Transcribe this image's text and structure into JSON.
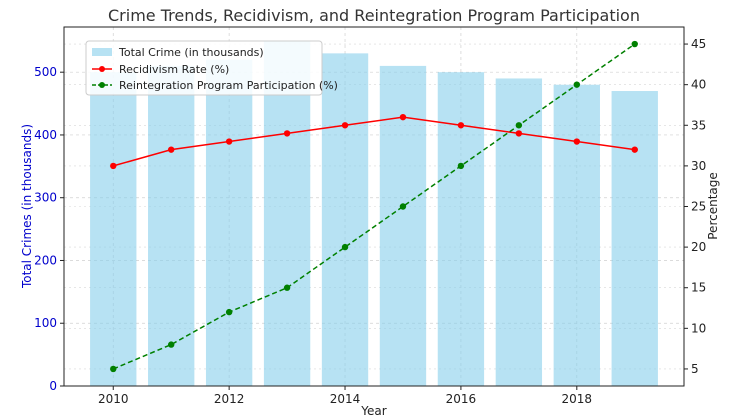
{
  "chart_data": {
    "type": "bar+line",
    "title": "Crime Trends, Recidivism, and Reintegration Program Participation",
    "xlabel": "Year",
    "ylabel_left": "Total Crimes (in thousands)",
    "ylabel_right": "Percentage",
    "x": [
      2010,
      2011,
      2012,
      2013,
      2014,
      2015,
      2016,
      2017,
      2018,
      2019
    ],
    "x_ticks": [
      "2010",
      "2012",
      "2014",
      "2016",
      "2018"
    ],
    "y_left_ticks": [
      "0",
      "100",
      "200",
      "300",
      "400",
      "500"
    ],
    "y_right_ticks": [
      "5",
      "10",
      "15",
      "20",
      "25",
      "30",
      "35",
      "40",
      "45"
    ],
    "xlim": [
      2009.15,
      2019.85
    ],
    "ylim_left": [
      0,
      572
    ],
    "ylim_right": [
      2.9,
      47.1
    ],
    "grid": true,
    "legend_position": "top-left",
    "series": [
      {
        "name": "Total Crime (in thousands)",
        "kind": "bar",
        "axis": "left",
        "color": "#87ceeb",
        "values": [
          500,
          510,
          520,
          550,
          530,
          510,
          500,
          490,
          480,
          470
        ]
      },
      {
        "name": "Recidivism Rate (%)",
        "kind": "line",
        "axis": "right",
        "color": "#ff0000",
        "values": [
          30,
          32,
          33,
          34,
          35,
          36,
          35,
          34,
          33,
          32
        ]
      },
      {
        "name": "Reintegration Program Participation (%)",
        "kind": "dashed-line",
        "axis": "right",
        "color": "#008000",
        "values": [
          5,
          8,
          12,
          15,
          20,
          25,
          30,
          35,
          40,
          45
        ]
      }
    ]
  }
}
